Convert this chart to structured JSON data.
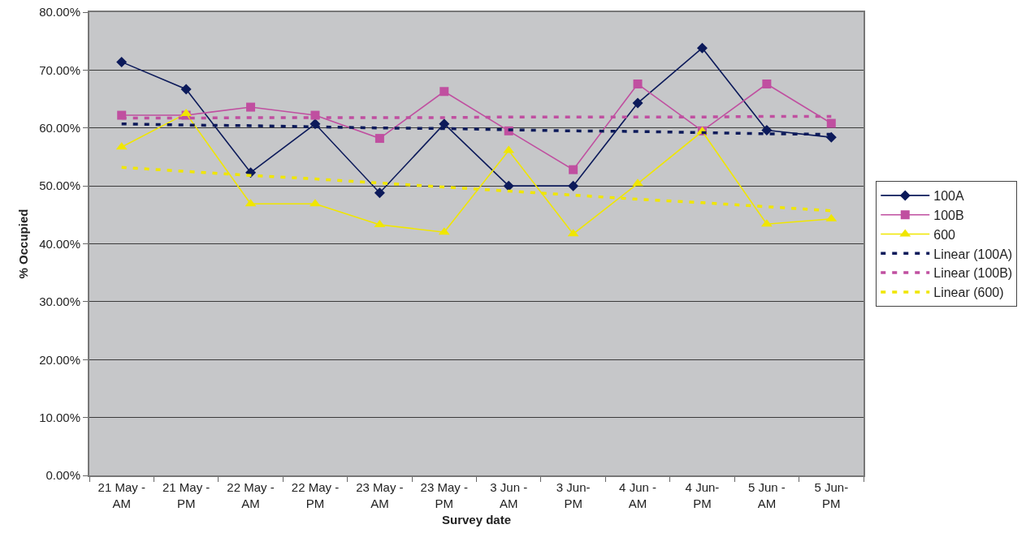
{
  "chart_data": {
    "type": "line",
    "xlabel": "Survey date",
    "ylabel": "% Occupied",
    "categories": [
      "21 May - AM",
      "21 May - PM",
      "22 May - AM",
      "22 May - PM",
      "23 May - AM",
      "23 May - PM",
      "3 Jun - AM",
      "3 Jun- PM",
      "4 Jun - AM",
      "4 Jun- PM",
      "5 Jun - AM",
      "5 Jun- PM"
    ],
    "ylim": [
      0,
      80
    ],
    "yticks": [
      {
        "value": 0,
        "label": "0.00%"
      },
      {
        "value": 10,
        "label": "10.00%"
      },
      {
        "value": 20,
        "label": "20.00%"
      },
      {
        "value": 30,
        "label": "30.00%"
      },
      {
        "value": 40,
        "label": "40.00%"
      },
      {
        "value": 50,
        "label": "50.00%"
      },
      {
        "value": 60,
        "label": "60.00%"
      },
      {
        "value": 70,
        "label": "70.00%"
      },
      {
        "value": 80,
        "label": "80.00%"
      }
    ],
    "grid": "y",
    "legend": "right",
    "series": [
      {
        "name": "100A",
        "color": "#0c1a5a",
        "marker": "diamond",
        "line_style": "solid",
        "values": [
          71.4,
          66.7,
          52.3,
          60.7,
          48.8,
          60.7,
          50.0,
          50.0,
          64.3,
          73.8,
          59.6,
          58.4
        ]
      },
      {
        "name": "100B",
        "color": "#c04fa0",
        "marker": "square",
        "line_style": "solid",
        "values": [
          62.2,
          62.2,
          63.6,
          62.2,
          58.2,
          66.3,
          59.5,
          52.8,
          67.6,
          59.5,
          67.6,
          60.8
        ]
      },
      {
        "name": "600",
        "color": "#f0e600",
        "marker": "triangle",
        "line_style": "solid",
        "values": [
          56.7,
          62.5,
          46.9,
          46.9,
          43.3,
          42.0,
          56.1,
          41.7,
          50.4,
          59.4,
          43.4,
          44.3
        ]
      },
      {
        "name": "Linear (100A)",
        "color": "#0c1a5a",
        "marker": "none",
        "line_style": "dashed",
        "values": [
          60.7,
          60.5,
          60.4,
          60.2,
          60.0,
          59.9,
          59.7,
          59.5,
          59.4,
          59.2,
          59.0,
          58.9
        ]
      },
      {
        "name": "Linear (100B)",
        "color": "#c04fa0",
        "marker": "none",
        "line_style": "dashed",
        "values": [
          61.7,
          61.7,
          61.8,
          61.8,
          61.8,
          61.8,
          61.9,
          61.9,
          61.9,
          61.9,
          62.0,
          62.0
        ]
      },
      {
        "name": "Linear (600)",
        "color": "#f0e600",
        "marker": "none",
        "line_style": "dashed",
        "values": [
          53.2,
          52.5,
          51.8,
          51.2,
          50.5,
          49.8,
          49.1,
          48.4,
          47.7,
          47.1,
          46.4,
          45.7
        ]
      }
    ]
  }
}
